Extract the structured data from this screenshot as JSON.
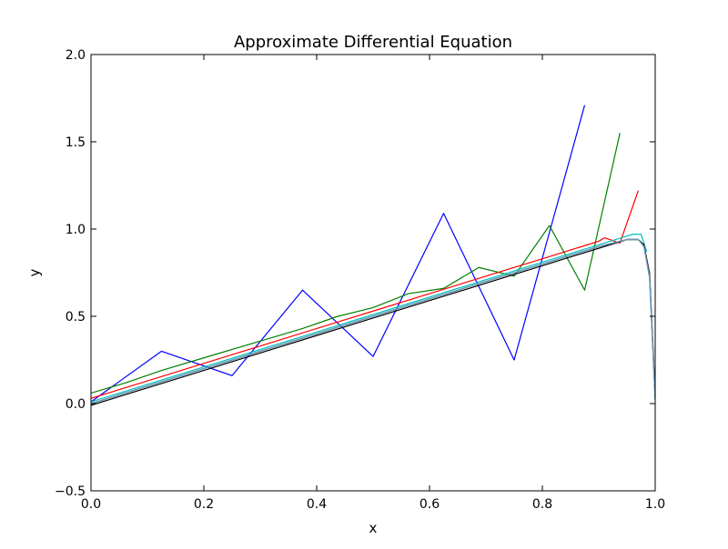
{
  "chart_data": {
    "type": "line",
    "title": "Approximate Differential Equation",
    "xlabel": "x",
    "ylabel": "y",
    "xlim": [
      0.0,
      1.0
    ],
    "ylim": [
      -0.5,
      2.0
    ],
    "xticks": [
      0.0,
      0.2,
      0.4,
      0.6,
      0.8,
      1.0
    ],
    "xtick_labels": [
      "0.0",
      "0.2",
      "0.4",
      "0.6",
      "0.8",
      "1.0"
    ],
    "yticks": [
      -0.5,
      0.0,
      0.5,
      1.0,
      1.5,
      2.0
    ],
    "ytick_labels": [
      "−0.5",
      "0.0",
      "0.5",
      "1.0",
      "1.5",
      "2.0"
    ],
    "grid": false,
    "legend": "none",
    "series": [
      {
        "color": "#0000ff",
        "x": [
          0.0,
          0.125,
          0.25,
          0.375,
          0.5,
          0.625,
          0.75,
          0.875
        ],
        "y": [
          0.01,
          0.3,
          0.16,
          0.65,
          0.27,
          1.09,
          0.25,
          1.71
        ]
      },
      {
        "color": "#008000",
        "x": [
          0.0,
          0.0625,
          0.125,
          0.1875,
          0.25,
          0.3125,
          0.375,
          0.4375,
          0.5,
          0.5625,
          0.625,
          0.6875,
          0.75,
          0.8125,
          0.875,
          0.9375
        ],
        "y": [
          0.06,
          0.12,
          0.19,
          0.25,
          0.31,
          0.37,
          0.43,
          0.5,
          0.55,
          0.63,
          0.66,
          0.78,
          0.73,
          1.02,
          0.65,
          1.55
        ]
      },
      {
        "color": "#ff0000",
        "x": [
          0.0,
          0.1,
          0.2,
          0.3,
          0.4,
          0.5,
          0.6,
          0.7,
          0.8,
          0.85,
          0.9,
          0.91,
          0.9375,
          0.97
        ],
        "y": [
          0.03,
          0.13,
          0.23,
          0.33,
          0.43,
          0.53,
          0.63,
          0.73,
          0.83,
          0.88,
          0.93,
          0.95,
          0.92,
          1.22
        ]
      },
      {
        "color": "#00bfbf",
        "x": [
          0.0,
          0.2,
          0.4,
          0.6,
          0.8,
          0.9,
          0.94,
          0.96,
          0.975,
          0.985
        ],
        "y": [
          0.01,
          0.21,
          0.41,
          0.61,
          0.81,
          0.91,
          0.95,
          0.97,
          0.97,
          0.87
        ]
      },
      {
        "color": "#bf00bf",
        "x": [
          0.0,
          0.2,
          0.4,
          0.6,
          0.8,
          0.9,
          0.95,
          0.97,
          0.98,
          0.99,
          1.0
        ],
        "y": [
          0.0,
          0.2,
          0.4,
          0.6,
          0.8,
          0.9,
          0.94,
          0.94,
          0.91,
          0.75,
          0.05
        ]
      },
      {
        "color": "#bfbf00",
        "x": [
          0.0,
          0.2,
          0.4,
          0.6,
          0.8,
          0.9,
          0.95,
          0.97,
          0.98,
          0.99,
          1.0
        ],
        "y": [
          0.0,
          0.2,
          0.4,
          0.6,
          0.8,
          0.9,
          0.94,
          0.94,
          0.91,
          0.74,
          0.04
        ]
      },
      {
        "color": "#000000",
        "x": [
          0.0,
          0.2,
          0.4,
          0.6,
          0.8,
          0.9,
          0.95,
          0.97,
          0.98,
          0.99,
          1.0
        ],
        "y": [
          -0.01,
          0.19,
          0.39,
          0.59,
          0.79,
          0.89,
          0.94,
          0.94,
          0.91,
          0.74,
          0.03
        ]
      },
      {
        "color": "#1f7a1f",
        "x": [
          0.0,
          0.2,
          0.4,
          0.6,
          0.8,
          0.9,
          0.95,
          0.97,
          0.98,
          0.99,
          1.0
        ],
        "y": [
          0.0,
          0.2,
          0.4,
          0.6,
          0.8,
          0.9,
          0.94,
          0.94,
          0.9,
          0.73,
          0.02
        ]
      },
      {
        "color": "#6699cc",
        "x": [
          0.0,
          0.2,
          0.4,
          0.6,
          0.8,
          0.9,
          0.95,
          0.97,
          0.98,
          0.99,
          1.0
        ],
        "y": [
          0.0,
          0.2,
          0.4,
          0.6,
          0.8,
          0.9,
          0.94,
          0.94,
          0.9,
          0.72,
          0.02
        ]
      }
    ]
  }
}
